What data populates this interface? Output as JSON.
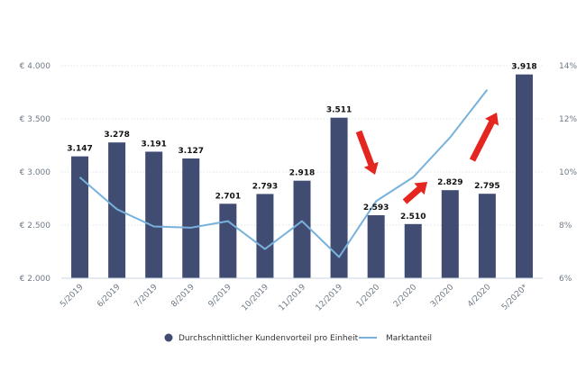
{
  "chart_data": {
    "type": "bar",
    "title": "",
    "xlabel": "",
    "ylabel": "",
    "categories": [
      "5/2019",
      "6/2019",
      "7/2019",
      "8/2019",
      "9/2019",
      "10/2019",
      "11/2019",
      "12/2019",
      "1/2020",
      "2/2020",
      "3/2020",
      "4/2020",
      "5/2020*"
    ],
    "series": [
      {
        "name": "Durchschnittlicher Kundenvorteil pro Einheit",
        "type": "bar",
        "axis": "left",
        "values": [
          3147,
          3278,
          3191,
          3127,
          2701,
          2793,
          2918,
          3511,
          2593,
          2510,
          2829,
          2795,
          3918
        ],
        "data_labels": [
          "3.147",
          "3.278",
          "3.191",
          "3.127",
          "2.701",
          "2.793",
          "2.918",
          "3.511",
          "2.593",
          "2.510",
          "2.829",
          "2.795",
          "3.918"
        ]
      },
      {
        "name": "Marktanteil",
        "type": "line",
        "axis": "right",
        "values": [
          9.8,
          8.6,
          7.95,
          7.9,
          8.15,
          7.1,
          8.15,
          6.8,
          8.9,
          9.8,
          11.3,
          13.1,
          null
        ]
      }
    ],
    "ylim": [
      2000,
      4000
    ],
    "y_ticks": [
      "€ 2.000",
      "€ 2.500",
      "€ 3.000",
      "€ 3.500",
      "€ 4.000"
    ],
    "y_tick_values": [
      2000,
      2500,
      3000,
      3500,
      4000
    ],
    "y2lim": [
      6,
      14
    ],
    "y2_ticks": [
      "6%",
      "8%",
      "10%",
      "12%",
      "14%"
    ],
    "y2_tick_values": [
      6,
      8,
      10,
      12,
      14
    ],
    "grid": true,
    "legend_placement": "bottom",
    "annotations": [
      {
        "kind": "arrow",
        "direction": "down",
        "near": "1/2020"
      },
      {
        "kind": "arrow",
        "direction": "up-right",
        "near": "2/2020"
      },
      {
        "kind": "arrow",
        "direction": "up-right",
        "near": "4/2020"
      }
    ],
    "colors": {
      "bar": "#414c73",
      "line": "#78b2dc",
      "arrow": "#e52520",
      "grid": "#dfe4ea"
    }
  }
}
